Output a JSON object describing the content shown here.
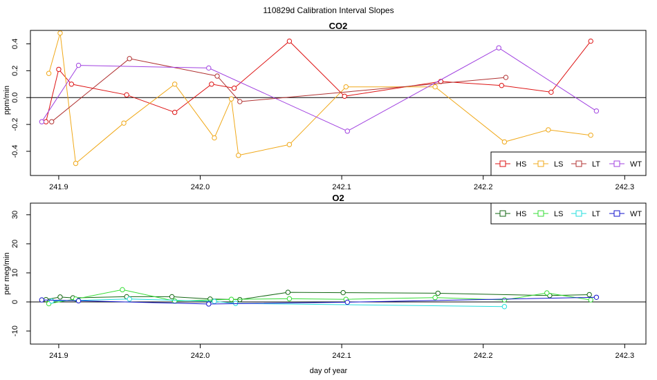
{
  "title": "110829d   Calibration Interval Slopes",
  "xlabel": "day of year",
  "colors": {
    "HS": "#dd1111",
    "LS": "#f0a818",
    "LT": "#b03030",
    "WT": "#a040e0"
  },
  "chart_data": [
    {
      "type": "line",
      "title": "CO2",
      "ylabel": "ppm/min",
      "xlim": [
        241.88,
        242.315
      ],
      "ylim": [
        -0.58,
        0.5
      ],
      "xticks": [
        "241.9",
        "242.0",
        "242.1",
        "242.2",
        "242.3"
      ],
      "xtick_values": [
        241.9,
        242.0,
        242.1,
        242.2,
        242.3
      ],
      "yticks": [
        "-0.4",
        "-0.2",
        "0.0",
        "0.2",
        "0.4"
      ],
      "ytick_values": [
        -0.4,
        -0.2,
        0.0,
        0.2,
        0.4
      ],
      "marker": "circle",
      "legend": "bottom-right",
      "series": [
        {
          "name": "HS",
          "color": "#dd1111",
          "x": [
            241.891,
            241.9,
            241.909,
            241.948,
            241.982,
            242.008,
            242.024,
            242.063,
            242.102,
            242.17,
            242.213,
            242.248,
            242.276
          ],
          "y": [
            -0.18,
            0.21,
            0.1,
            0.02,
            -0.11,
            0.1,
            0.07,
            0.42,
            0.01,
            0.12,
            0.09,
            0.04,
            0.42
          ]
        },
        {
          "name": "LS",
          "color": "#f0a818",
          "x": [
            241.893,
            241.901,
            241.912,
            241.946,
            241.982,
            242.01,
            242.022,
            242.027,
            242.063,
            242.103,
            242.166,
            242.215,
            242.246,
            242.276
          ],
          "y": [
            0.18,
            0.48,
            -0.49,
            -0.19,
            0.1,
            -0.3,
            -0.01,
            -0.43,
            -0.35,
            0.08,
            0.08,
            -0.33,
            -0.24,
            -0.28
          ]
        },
        {
          "name": "LT",
          "color": "#b03030",
          "x": [
            241.895,
            241.95,
            242.012,
            242.028,
            242.216
          ],
          "y": [
            -0.18,
            0.29,
            0.16,
            -0.03,
            0.15
          ]
        },
        {
          "name": "WT",
          "color": "#a040e0",
          "x": [
            241.888,
            241.914,
            242.006,
            242.104,
            242.211,
            242.28
          ],
          "y": [
            -0.18,
            0.24,
            0.22,
            -0.25,
            0.37,
            -0.1
          ]
        }
      ]
    },
    {
      "type": "line",
      "title": "O2",
      "ylabel": "per meg/min",
      "xlim": [
        241.88,
        242.315
      ],
      "ylim": [
        -14.5,
        34
      ],
      "xticks": [
        "241.9",
        "242.0",
        "242.1",
        "242.2",
        "242.3"
      ],
      "xtick_values": [
        241.9,
        242.0,
        242.1,
        242.2,
        242.3
      ],
      "yticks": [
        "-10",
        "0",
        "10",
        "20",
        "30"
      ],
      "ytick_values": [
        -10,
        0,
        10,
        20,
        30
      ],
      "marker": "circle",
      "legend": "top-right",
      "series": [
        {
          "name": "HS",
          "color": "#116611",
          "x": [
            241.891,
            241.901,
            241.91,
            241.948,
            241.98,
            242.007,
            242.028,
            242.062,
            242.101,
            242.168,
            242.247,
            242.275
          ],
          "y": [
            0.8,
            1.7,
            1.4,
            1.8,
            1.8,
            1.0,
            0.8,
            3.3,
            3.2,
            3.0,
            2.2,
            2.5
          ]
        },
        {
          "name": "LS",
          "color": "#33dd33",
          "x": [
            241.893,
            241.912,
            241.945,
            241.982,
            242.022,
            242.063,
            242.103,
            242.166,
            242.215,
            242.245,
            242.276
          ],
          "y": [
            -0.6,
            1.0,
            4.2,
            0.3,
            0.9,
            1.1,
            0.9,
            1.5,
            0.7,
            3.1,
            0.7
          ]
        },
        {
          "name": "LT",
          "color": "#22dddd",
          "x": [
            241.895,
            241.95,
            242.01,
            242.025,
            242.215
          ],
          "y": [
            0.3,
            1.0,
            0.2,
            -0.5,
            -1.6
          ]
        },
        {
          "name": "WT",
          "color": "#1111cc",
          "x": [
            241.888,
            241.914,
            242.006,
            242.104,
            242.28
          ],
          "y": [
            0.7,
            0.4,
            -0.7,
            -0.1,
            1.6
          ]
        }
      ]
    }
  ]
}
